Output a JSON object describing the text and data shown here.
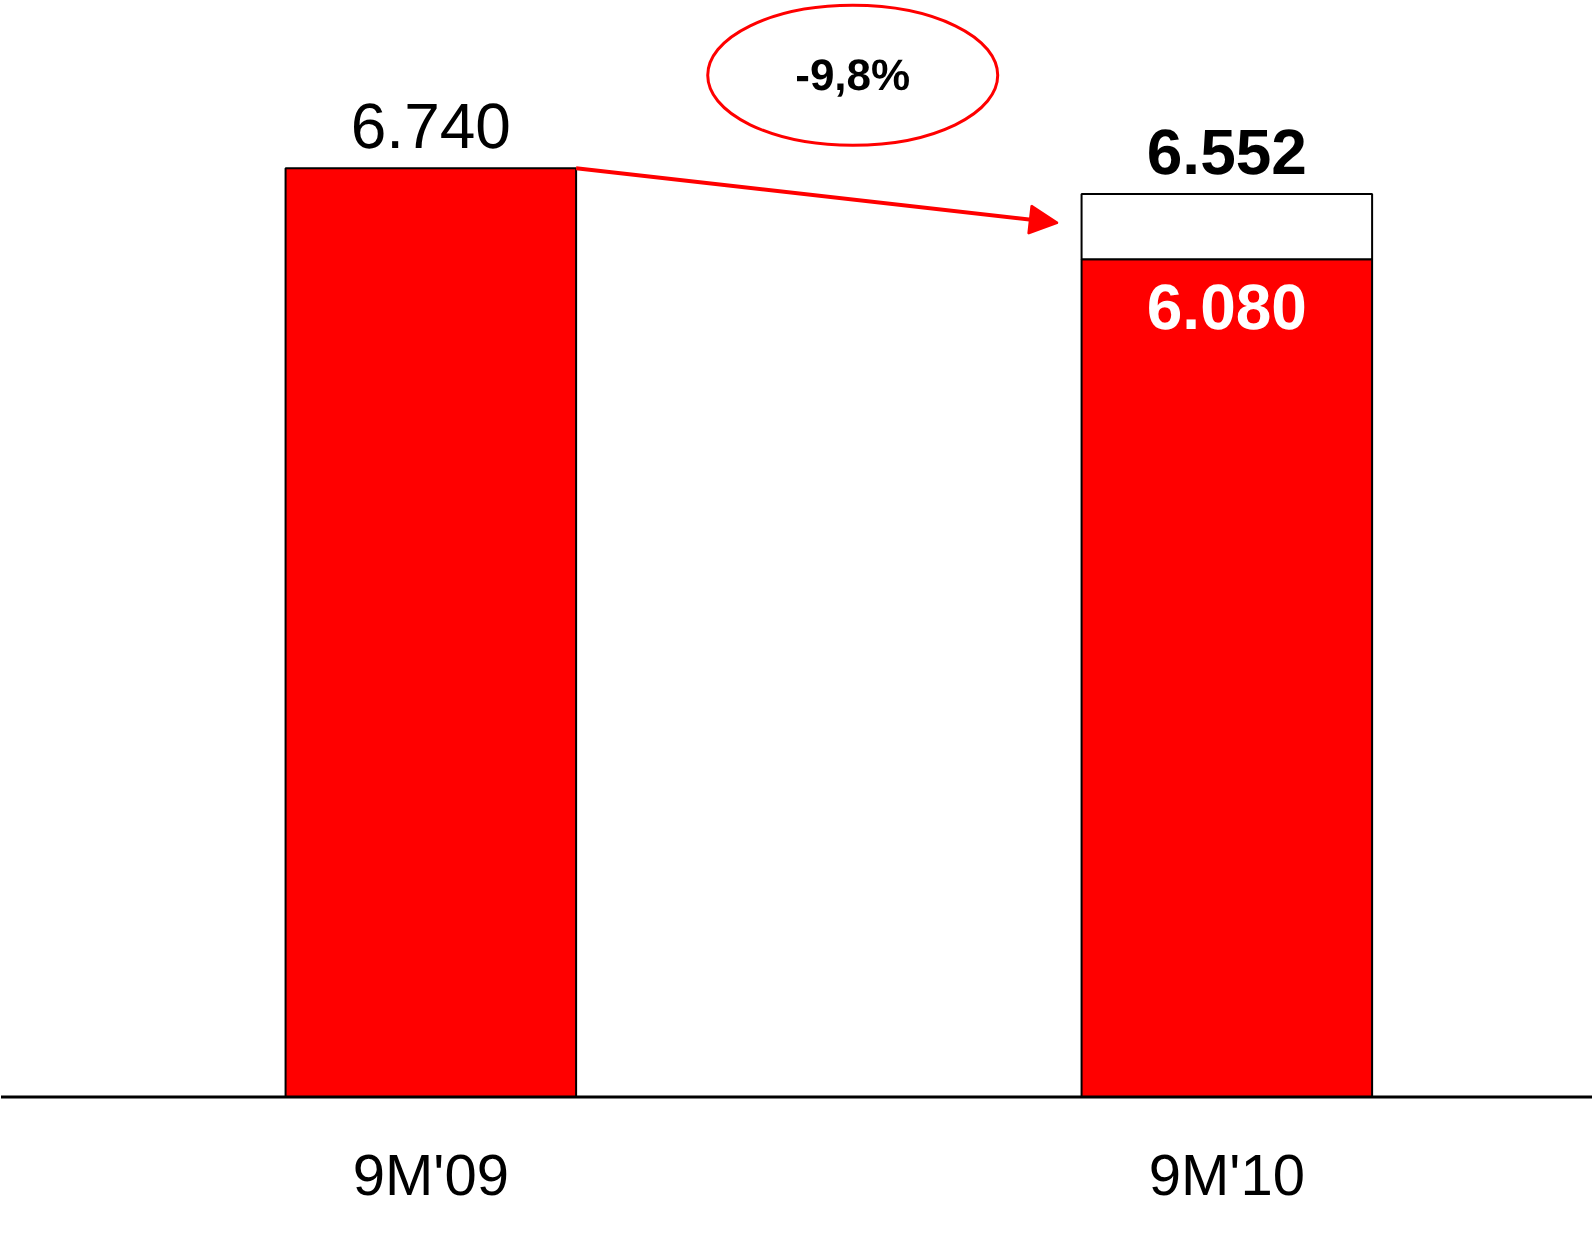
{
  "chart_data": {
    "type": "bar",
    "stacked": true,
    "categories": [
      "9M'09",
      "9M'10"
    ],
    "series": [
      {
        "color": "#ff0000",
        "values": [
          6740,
          6080
        ],
        "value_labels": [
          "6.740",
          "6.080"
        ]
      },
      {
        "color": "#ffffff",
        "values": [
          null,
          472
        ],
        "value_labels": [
          null,
          null
        ]
      }
    ],
    "totals": [
      null,
      "6.552"
    ],
    "annotations": [
      "-9,8%"
    ],
    "grid": false
  }
}
